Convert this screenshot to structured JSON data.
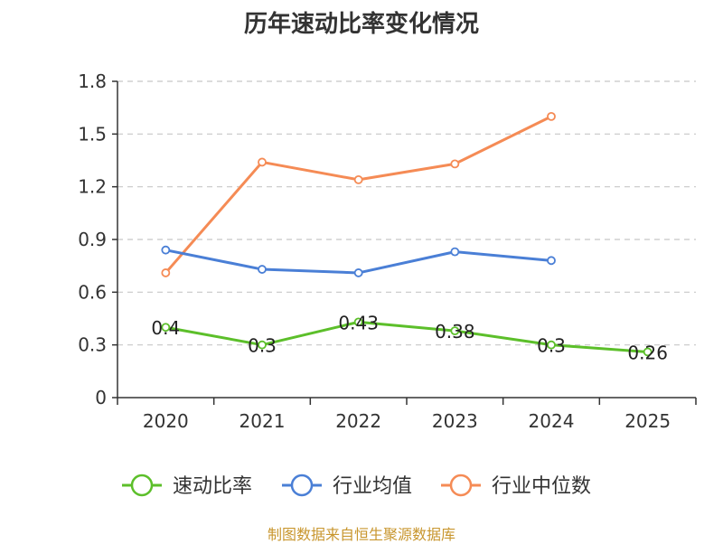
{
  "chart_data": {
    "type": "line",
    "title": "历年速动比率变化情况",
    "categories": [
      "2020",
      "2021",
      "2022",
      "2023",
      "2024",
      "2025"
    ],
    "yticks": [
      "0",
      "0.3",
      "0.6",
      "0.9",
      "1.2",
      "1.5",
      "1.8"
    ],
    "ylim": [
      0,
      1.8
    ],
    "xlabel": "",
    "ylabel": "",
    "grid": true,
    "legend_position": "bottom",
    "series": [
      {
        "name": "速动比率",
        "color": "#5cbf2a",
        "values": [
          0.4,
          0.3,
          0.43,
          0.38,
          0.3,
          0.26
        ],
        "labels": [
          "0.4",
          "0.3",
          "0.43",
          "0.38",
          "0.3",
          "0.26"
        ]
      },
      {
        "name": "行业均值",
        "color": "#4a7fd6",
        "values": [
          0.84,
          0.73,
          0.71,
          0.83,
          0.78,
          null
        ]
      },
      {
        "name": "行业中位数",
        "color": "#f58b55",
        "values": [
          0.71,
          1.34,
          1.24,
          1.33,
          1.6,
          null
        ]
      }
    ]
  },
  "footer": {
    "source": "制图数据来自恒生聚源数据库"
  }
}
